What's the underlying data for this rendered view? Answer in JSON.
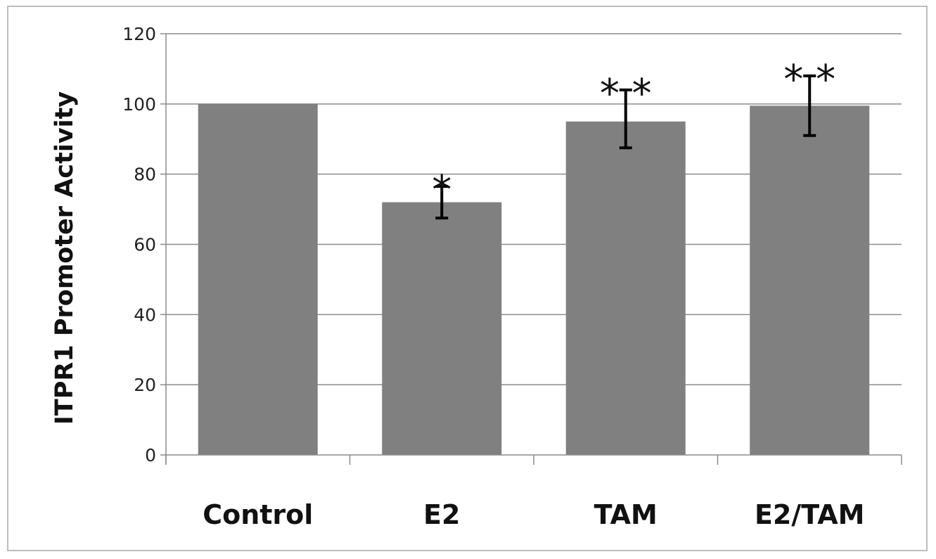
{
  "chart_data": {
    "type": "bar",
    "title": "",
    "xlabel": "",
    "ylabel": "ITPR1 Promoter Activity",
    "categories": [
      "Control",
      "E2",
      "TAM",
      "E2/TAM"
    ],
    "values": [
      100,
      72,
      95,
      99.5
    ],
    "error_low": [
      null,
      67.5,
      87.5,
      91
    ],
    "error_high": [
      null,
      76.5,
      104,
      108
    ],
    "significance": [
      "",
      "*",
      "* *",
      "* *"
    ],
    "ylim": [
      0,
      120
    ],
    "yticks": [
      0,
      20,
      40,
      60,
      80,
      100,
      120
    ],
    "grid": true,
    "legend": "none",
    "colors": {
      "bar": "#808080",
      "grid": "#8c8c8c",
      "error_bar": "#000000",
      "axis": "#8c8c8c"
    }
  }
}
